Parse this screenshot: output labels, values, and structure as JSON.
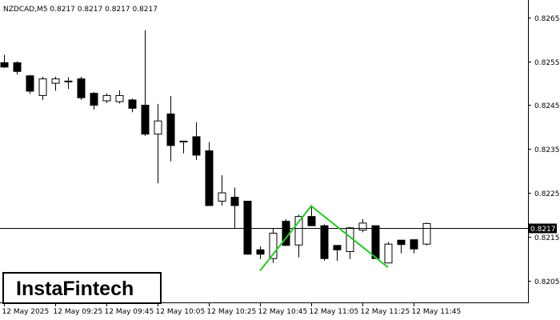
{
  "chart_data": {
    "type": "candlestick",
    "title": "NZDCAD,M5  0.8217 0.8217 0.8217 0.8217",
    "ylim": [
      0.82,
      0.8269
    ],
    "y_ticks": [
      "0.8265",
      "0.8255",
      "0.8245",
      "0.8235",
      "0.8225",
      "0.8215",
      "0.8205"
    ],
    "x_ticks": [
      {
        "label": "12 May 2025",
        "index": 0
      },
      {
        "label": "12 May 09:25",
        "index": 4
      },
      {
        "label": "12 May 09:45",
        "index": 8
      },
      {
        "label": "12 May 10:05",
        "index": 12
      },
      {
        "label": "12 May 10:25",
        "index": 16
      },
      {
        "label": "12 May 10:45",
        "index": 20
      },
      {
        "label": "12 May 11:05",
        "index": 24
      },
      {
        "label": "12 May 11:25",
        "index": 28
      },
      {
        "label": "12 May 11:45",
        "index": 32
      }
    ],
    "current_price": {
      "label": "0.8217",
      "value": 0.8217
    },
    "candles": [
      {
        "o": 0.82547,
        "h": 0.82565,
        "l": 0.82535,
        "c": 0.82537
      },
      {
        "o": 0.82547,
        "h": 0.8255,
        "l": 0.8252,
        "c": 0.82527
      },
      {
        "o": 0.82517,
        "h": 0.82519,
        "l": 0.82476,
        "c": 0.82482
      },
      {
        "o": 0.82472,
        "h": 0.82515,
        "l": 0.82462,
        "c": 0.8251
      },
      {
        "o": 0.825,
        "h": 0.82515,
        "l": 0.82483,
        "c": 0.8251
      },
      {
        "o": 0.82505,
        "h": 0.82514,
        "l": 0.82487,
        "c": 0.82504
      },
      {
        "o": 0.8251,
        "h": 0.82515,
        "l": 0.82462,
        "c": 0.82467
      },
      {
        "o": 0.82477,
        "h": 0.8248,
        "l": 0.8244,
        "c": 0.8245
      },
      {
        "o": 0.8246,
        "h": 0.82477,
        "l": 0.82455,
        "c": 0.82472
      },
      {
        "o": 0.82458,
        "h": 0.82484,
        "l": 0.82454,
        "c": 0.82472
      },
      {
        "o": 0.82462,
        "h": 0.82465,
        "l": 0.82434,
        "c": 0.82443
      },
      {
        "o": 0.8245,
        "h": 0.82621,
        "l": 0.8238,
        "c": 0.82384
      },
      {
        "o": 0.82384,
        "h": 0.82453,
        "l": 0.82272,
        "c": 0.82414
      },
      {
        "o": 0.8243,
        "h": 0.82471,
        "l": 0.82322,
        "c": 0.82358
      },
      {
        "o": 0.82368,
        "h": 0.82368,
        "l": 0.8234,
        "c": 0.82368
      },
      {
        "o": 0.82378,
        "h": 0.82411,
        "l": 0.82325,
        "c": 0.82336
      },
      {
        "o": 0.82346,
        "h": 0.82366,
        "l": 0.82221,
        "c": 0.82221
      },
      {
        "o": 0.82231,
        "h": 0.8229,
        "l": 0.82221,
        "c": 0.8225
      },
      {
        "o": 0.8224,
        "h": 0.82262,
        "l": 0.8217,
        "c": 0.82221
      },
      {
        "o": 0.82231,
        "h": 0.82231,
        "l": 0.8211,
        "c": 0.8211
      },
      {
        "o": 0.8212,
        "h": 0.82128,
        "l": 0.82099,
        "c": 0.8211
      },
      {
        "o": 0.821,
        "h": 0.8217,
        "l": 0.8209,
        "c": 0.82158
      },
      {
        "o": 0.82185,
        "h": 0.8219,
        "l": 0.8213,
        "c": 0.8213
      },
      {
        "o": 0.82131,
        "h": 0.822,
        "l": 0.82103,
        "c": 0.82196
      },
      {
        "o": 0.82196,
        "h": 0.82222,
        "l": 0.82176,
        "c": 0.82175
      },
      {
        "o": 0.82175,
        "h": 0.82178,
        "l": 0.82095,
        "c": 0.821
      },
      {
        "o": 0.8213,
        "h": 0.8213,
        "l": 0.82095,
        "c": 0.8212
      },
      {
        "o": 0.82116,
        "h": 0.82172,
        "l": 0.82099,
        "c": 0.8217
      },
      {
        "o": 0.82165,
        "h": 0.8219,
        "l": 0.8216,
        "c": 0.82181
      },
      {
        "o": 0.82175,
        "h": 0.82175,
        "l": 0.821,
        "c": 0.821
      },
      {
        "o": 0.8209,
        "h": 0.82138,
        "l": 0.8209,
        "c": 0.82133
      },
      {
        "o": 0.82142,
        "h": 0.82142,
        "l": 0.82112,
        "c": 0.82132
      },
      {
        "o": 0.82143,
        "h": 0.82143,
        "l": 0.82112,
        "c": 0.82122
      },
      {
        "o": 0.82133,
        "h": 0.82182,
        "l": 0.8213,
        "c": 0.8218
      }
    ],
    "pattern": {
      "color": "#22cc22",
      "points": [
        {
          "index": 20,
          "value": 0.82072
        },
        {
          "index": 24,
          "value": 0.8222
        },
        {
          "index": 30,
          "value": 0.8208
        }
      ]
    }
  },
  "logo": {
    "text": "InstaFintech"
  }
}
